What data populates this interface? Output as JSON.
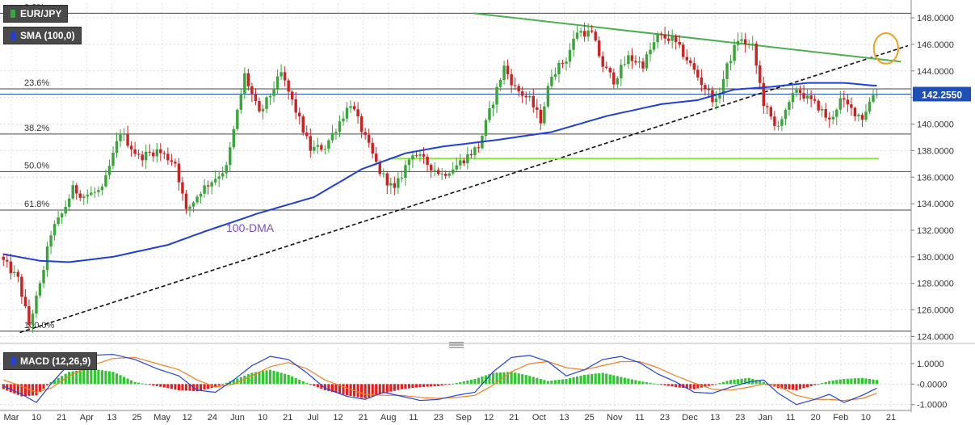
{
  "title": "EUR/JPY",
  "indicator_label": "SMA (100,0)",
  "macd_label": "MACD (12,26,9)",
  "price_badge": "142.2550",
  "annotations": {
    "dma_label": "100-DMA"
  },
  "colors": {
    "candle_up": "#3aa53a",
    "candle_down": "#cc2222",
    "sma": "#1f3fd6",
    "falling_trendline": "#4caf50",
    "support_line": "#8fe33a",
    "rising_trendline": "#111111",
    "highlight_circle": "#f0a020",
    "macd_line": "#2244dd",
    "signal_line": "#f08020",
    "badge": "#1f4fb4"
  },
  "chart_data": [
    {
      "type": "candlestick",
      "title": "EUR/JPY",
      "series": [
        {
          "name": "SMA (100,0)"
        }
      ],
      "ylim": [
        123.6,
        149.1
      ],
      "y_ticks": [
        "124.0000",
        "126.0000",
        "128.0000",
        "130.0000",
        "132.0000",
        "134.0000",
        "136.0000",
        "138.0000",
        "140.0000",
        "142.0000",
        "144.0000",
        "146.0000",
        "148.0000"
      ],
      "x_ticks": [
        "Mar",
        "10",
        "21",
        "Apr",
        "13",
        "25",
        "May",
        "12",
        "24",
        "Jun",
        "10",
        "21",
        "Jul",
        "12",
        "21",
        "Aug",
        "11",
        "23",
        "Sep",
        "12",
        "21",
        "Oct",
        "13",
        "25",
        "Nov",
        "11",
        "23",
        "Dec",
        "13",
        "23",
        "Jan",
        "11",
        "20",
        "Feb",
        "10",
        "21"
      ],
      "fibonacci": [
        {
          "label": "0.0%",
          "value": 148.35
        },
        {
          "label": "23.6%",
          "value": 142.65
        },
        {
          "label": "38.2%",
          "value": 139.25
        },
        {
          "label": "50.0%",
          "value": 136.42
        },
        {
          "label": "61.8%",
          "value": 133.52
        },
        {
          "label": "100.0%",
          "value": 124.4
        }
      ],
      "current_price": 142.255,
      "sma_anchors": [
        [
          0,
          130.2
        ],
        [
          10,
          129.7
        ],
        [
          18,
          129.6
        ],
        [
          30,
          130.0
        ],
        [
          45,
          130.9
        ],
        [
          55,
          131.9
        ],
        [
          70,
          133.3
        ],
        [
          85,
          134.5
        ],
        [
          98,
          136.6
        ],
        [
          110,
          137.8
        ],
        [
          120,
          138.3
        ],
        [
          135,
          138.8
        ],
        [
          150,
          139.4
        ],
        [
          165,
          140.6
        ],
        [
          180,
          141.5
        ],
        [
          190,
          141.8
        ],
        [
          200,
          142.6
        ],
        [
          210,
          142.8
        ],
        [
          220,
          143.1
        ],
        [
          230,
          143.1
        ],
        [
          238,
          142.9
        ]
      ],
      "rising_trendline": [
        [
          5,
          124.3
        ],
        [
          248,
          145.9
        ]
      ],
      "falling_trendline": [
        [
          129,
          148.35
        ],
        [
          246,
          144.7
        ]
      ],
      "support_line": [
        [
          106,
          137.4
        ],
        [
          240,
          137.4
        ]
      ],
      "price_anchors": [
        [
          0,
          130.0
        ],
        [
          5,
          128.3
        ],
        [
          8,
          124.9
        ],
        [
          11,
          127.8
        ],
        [
          14,
          131.8
        ],
        [
          17,
          133.2
        ],
        [
          20,
          135.1
        ],
        [
          23,
          134.6
        ],
        [
          28,
          135.0
        ],
        [
          33,
          139.4
        ],
        [
          38,
          137.5
        ],
        [
          43,
          138.0
        ],
        [
          48,
          137.1
        ],
        [
          51,
          133.4
        ],
        [
          55,
          135.0
        ],
        [
          62,
          136.7
        ],
        [
          67,
          143.7
        ],
        [
          71,
          140.7
        ],
        [
          74,
          142.2
        ],
        [
          77,
          143.8
        ],
        [
          81,
          141.0
        ],
        [
          85,
          138.1
        ],
        [
          89,
          138.3
        ],
        [
          93,
          140.2
        ],
        [
          96,
          141.6
        ],
        [
          100,
          138.9
        ],
        [
          104,
          136.4
        ],
        [
          108,
          135.0
        ],
        [
          111,
          136.8
        ],
        [
          113,
          137.9
        ],
        [
          117,
          137.0
        ],
        [
          121,
          136.2
        ],
        [
          125,
          136.9
        ],
        [
          131,
          138.3
        ],
        [
          134,
          140.9
        ],
        [
          138,
          144.3
        ],
        [
          141,
          142.7
        ],
        [
          145,
          141.8
        ],
        [
          148,
          140.3
        ],
        [
          151,
          143.8
        ],
        [
          155,
          144.9
        ],
        [
          158,
          147.0
        ],
        [
          162,
          146.8
        ],
        [
          165,
          144.4
        ],
        [
          168,
          143.3
        ],
        [
          172,
          145.0
        ],
        [
          176,
          144.5
        ],
        [
          180,
          146.6
        ],
        [
          184,
          146.4
        ],
        [
          188,
          144.9
        ],
        [
          192,
          143.1
        ],
        [
          196,
          141.6
        ],
        [
          199,
          144.3
        ],
        [
          202,
          146.4
        ],
        [
          206,
          145.8
        ],
        [
          209,
          141.6
        ],
        [
          212,
          139.8
        ],
        [
          215,
          140.8
        ],
        [
          218,
          142.7
        ],
        [
          221,
          141.9
        ],
        [
          224,
          141.3
        ],
        [
          227,
          140.2
        ],
        [
          230,
          141.8
        ],
        [
          233,
          141.1
        ],
        [
          236,
          140.5
        ],
        [
          239,
          142.25
        ]
      ],
      "marks": {
        "highlight_circle_center": [
          242,
          145.7
        ],
        "highlight_circle_radius": 1.15
      }
    },
    {
      "type": "bar",
      "title": "MACD (12,26,9)",
      "series": [
        {
          "name": "MACD"
        },
        {
          "name": "Signal"
        },
        {
          "name": "Histogram"
        }
      ],
      "ylim": [
        -1.25,
        1.75
      ],
      "y_ticks": [
        "1.0000",
        "-0.0000",
        "-1.0000"
      ],
      "histogram_anchors": [
        [
          0,
          -0.25
        ],
        [
          5,
          -0.6
        ],
        [
          9,
          -0.55
        ],
        [
          13,
          0.1
        ],
        [
          18,
          0.6
        ],
        [
          24,
          0.75
        ],
        [
          30,
          0.6
        ],
        [
          36,
          0.1
        ],
        [
          42,
          -0.1
        ],
        [
          48,
          -0.3
        ],
        [
          53,
          -0.35
        ],
        [
          58,
          -0.15
        ],
        [
          63,
          0.2
        ],
        [
          68,
          0.55
        ],
        [
          73,
          0.7
        ],
        [
          78,
          0.45
        ],
        [
          83,
          0.05
        ],
        [
          88,
          -0.3
        ],
        [
          94,
          -0.55
        ],
        [
          99,
          -0.7
        ],
        [
          104,
          -0.45
        ],
        [
          109,
          -0.25
        ],
        [
          114,
          -0.15
        ],
        [
          119,
          -0.1
        ],
        [
          124,
          0.05
        ],
        [
          129,
          0.25
        ],
        [
          134,
          0.55
        ],
        [
          139,
          0.6
        ],
        [
          144,
          0.4
        ],
        [
          149,
          0.15
        ],
        [
          154,
          0.25
        ],
        [
          159,
          0.45
        ],
        [
          164,
          0.55
        ],
        [
          169,
          0.35
        ],
        [
          174,
          0.15
        ],
        [
          179,
          0.0
        ],
        [
          184,
          -0.15
        ],
        [
          189,
          -0.25
        ],
        [
          194,
          -0.05
        ],
        [
          199,
          0.2
        ],
        [
          204,
          0.3
        ],
        [
          208,
          0.1
        ],
        [
          212,
          -0.2
        ],
        [
          217,
          -0.3
        ],
        [
          222,
          -0.05
        ],
        [
          226,
          0.15
        ],
        [
          230,
          0.25
        ],
        [
          235,
          0.3
        ],
        [
          239,
          0.2
        ]
      ],
      "macd_anchors": [
        [
          0,
          -0.1
        ],
        [
          5,
          -0.5
        ],
        [
          9,
          -0.9
        ],
        [
          13,
          0.0
        ],
        [
          18,
          1.0
        ],
        [
          24,
          1.4
        ],
        [
          30,
          1.45
        ],
        [
          36,
          1.2
        ],
        [
          42,
          0.75
        ],
        [
          48,
          0.4
        ],
        [
          53,
          -0.3
        ],
        [
          58,
          -0.4
        ],
        [
          63,
          0.2
        ],
        [
          68,
          0.9
        ],
        [
          73,
          1.35
        ],
        [
          78,
          1.2
        ],
        [
          83,
          0.55
        ],
        [
          88,
          -0.2
        ],
        [
          94,
          -0.6
        ],
        [
          99,
          -0.75
        ],
        [
          104,
          -0.4
        ],
        [
          109,
          -0.6
        ],
        [
          114,
          -0.8
        ],
        [
          119,
          -0.75
        ],
        [
          124,
          -0.55
        ],
        [
          129,
          -0.4
        ],
        [
          134,
          0.6
        ],
        [
          139,
          1.3
        ],
        [
          144,
          1.4
        ],
        [
          149,
          1.1
        ],
        [
          154,
          0.4
        ],
        [
          159,
          0.7
        ],
        [
          164,
          1.2
        ],
        [
          169,
          1.35
        ],
        [
          174,
          1.05
        ],
        [
          179,
          0.5
        ],
        [
          184,
          0.1
        ],
        [
          189,
          -0.4
        ],
        [
          194,
          -0.45
        ],
        [
          199,
          -0.15
        ],
        [
          204,
          0.1
        ],
        [
          208,
          0.2
        ],
        [
          212,
          -0.45
        ],
        [
          217,
          -1.0
        ],
        [
          222,
          -0.75
        ],
        [
          226,
          -0.5
        ],
        [
          230,
          -0.9
        ],
        [
          235,
          -0.55
        ],
        [
          239,
          -0.2
        ]
      ],
      "signal_anchors": [
        [
          0,
          0.2
        ],
        [
          5,
          -0.1
        ],
        [
          9,
          -0.4
        ],
        [
          13,
          -0.2
        ],
        [
          18,
          0.4
        ],
        [
          24,
          0.9
        ],
        [
          30,
          1.25
        ],
        [
          36,
          1.3
        ],
        [
          42,
          1.0
        ],
        [
          48,
          0.7
        ],
        [
          53,
          0.2
        ],
        [
          58,
          -0.15
        ],
        [
          63,
          0.0
        ],
        [
          68,
          0.4
        ],
        [
          73,
          0.85
        ],
        [
          78,
          1.05
        ],
        [
          83,
          0.75
        ],
        [
          88,
          0.2
        ],
        [
          94,
          -0.2
        ],
        [
          99,
          -0.5
        ],
        [
          104,
          -0.55
        ],
        [
          109,
          -0.55
        ],
        [
          114,
          -0.65
        ],
        [
          119,
          -0.7
        ],
        [
          124,
          -0.65
        ],
        [
          129,
          -0.55
        ],
        [
          134,
          -0.05
        ],
        [
          139,
          0.6
        ],
        [
          144,
          1.0
        ],
        [
          149,
          1.1
        ],
        [
          154,
          0.8
        ],
        [
          159,
          0.7
        ],
        [
          164,
          0.9
        ],
        [
          169,
          1.1
        ],
        [
          174,
          1.1
        ],
        [
          179,
          0.8
        ],
        [
          184,
          0.4
        ],
        [
          189,
          0.05
        ],
        [
          194,
          -0.25
        ],
        [
          199,
          -0.3
        ],
        [
          204,
          -0.15
        ],
        [
          208,
          0.0
        ],
        [
          212,
          -0.1
        ],
        [
          217,
          -0.55
        ],
        [
          222,
          -0.75
        ],
        [
          226,
          -0.75
        ],
        [
          230,
          -0.8
        ],
        [
          235,
          -0.7
        ],
        [
          239,
          -0.45
        ]
      ]
    }
  ]
}
